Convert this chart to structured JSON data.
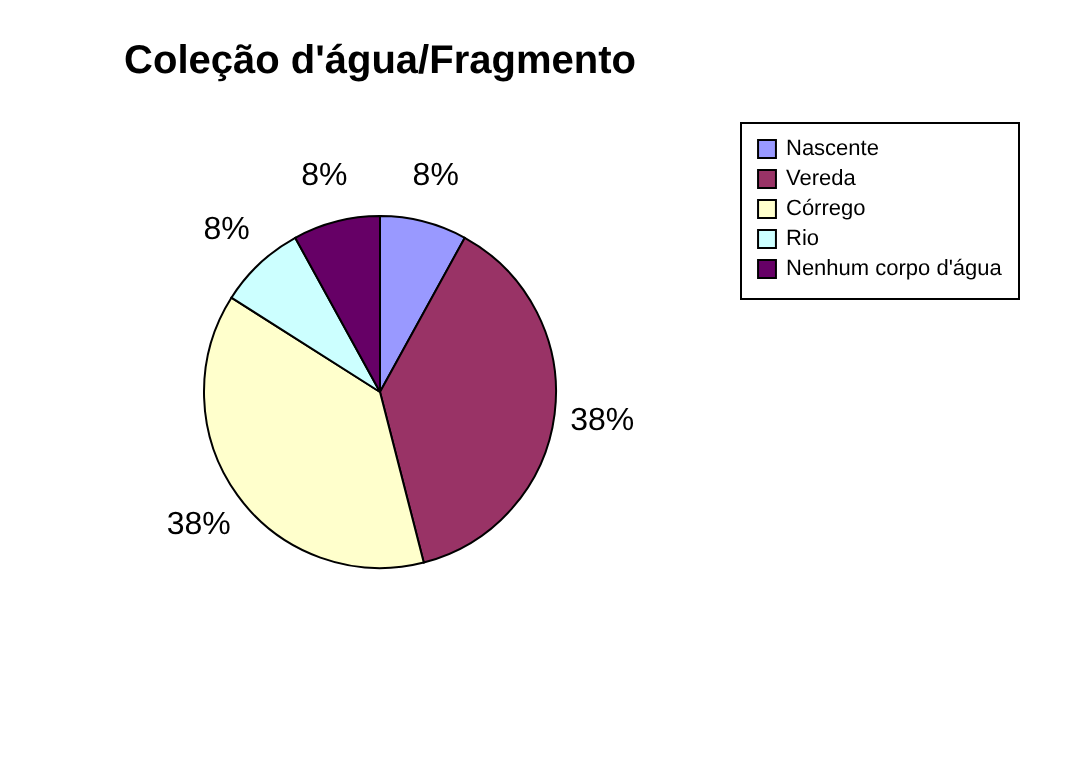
{
  "chart_data": {
    "type": "pie",
    "title": "Coleção d'água/Fragmento",
    "categories": [
      "Nascente",
      "Vereda",
      "Córrego",
      "Rio",
      "Nenhum corpo d'água"
    ],
    "values": [
      8,
      38,
      38,
      8,
      8
    ],
    "colors": [
      "#9999ff",
      "#993366",
      "#ffffcc",
      "#ccffff",
      "#660066"
    ],
    "value_labels": [
      "8%",
      "38%",
      "38%",
      "8%",
      "8%"
    ],
    "legend": "right"
  }
}
